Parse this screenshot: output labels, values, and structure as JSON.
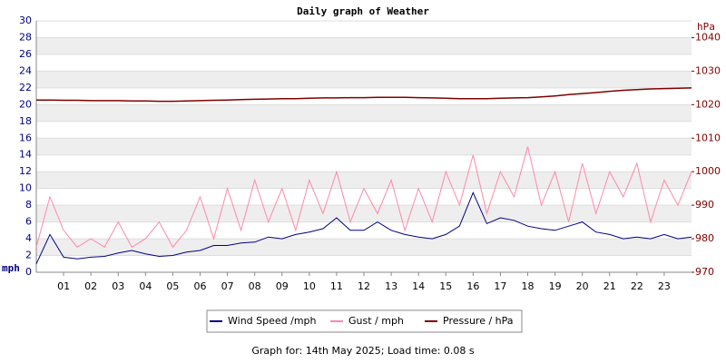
{
  "chart_data": {
    "type": "line",
    "title": "Daily graph of Weather",
    "ylabel": "mph",
    "y2label": "hPa",
    "footer": "Graph for: 14th May 2025; Load time: 0.08 s",
    "x": [
      0,
      0.5,
      1,
      1.5,
      2,
      2.5,
      3,
      3.5,
      4,
      4.5,
      5,
      5.5,
      6,
      6.5,
      7,
      7.5,
      8,
      8.5,
      9,
      9.5,
      10,
      10.5,
      11,
      11.5,
      12,
      12.5,
      13,
      13.5,
      14,
      14.5,
      15,
      15.5,
      16,
      16.5,
      17,
      17.5,
      18,
      18.5,
      19,
      19.5,
      20,
      20.5,
      21,
      21.5,
      22,
      22.5,
      23,
      23.5,
      24
    ],
    "series": [
      {
        "name": "Wind Speed /mph",
        "color": "#000080",
        "values": [
          1,
          4.5,
          1.8,
          1.6,
          1.8,
          1.9,
          2.3,
          2.6,
          2.2,
          1.9,
          2,
          2.4,
          2.6,
          3.2,
          3.2,
          3.5,
          3.6,
          4.2,
          4,
          4.5,
          4.8,
          5.2,
          6.5,
          5,
          5,
          6,
          5,
          4.5,
          4.2,
          4,
          4.5,
          5.5,
          9.5,
          5.8,
          6.5,
          6.2,
          5.5,
          5.2,
          5,
          5.5,
          6,
          4.8,
          4.5,
          4,
          4.2,
          4,
          4.5,
          4,
          4.2
        ]
      },
      {
        "name": "Gust / mph",
        "color": "#ff88aa",
        "values": [
          3,
          9,
          5,
          3,
          4,
          3,
          6,
          3,
          4,
          6,
          3,
          5,
          9,
          4,
          10,
          5,
          11,
          6,
          10,
          5,
          11,
          7,
          12,
          6,
          10,
          7,
          11,
          5,
          10,
          6,
          12,
          8,
          14,
          7,
          12,
          9,
          15,
          8,
          12,
          6,
          13,
          7,
          12,
          9,
          13,
          6,
          11,
          8,
          12
        ]
      },
      {
        "name": "Pressure / hPa",
        "color": "#800000",
        "axis": "y2",
        "values": [
          1021.4,
          1021.4,
          1021.3,
          1021.3,
          1021.2,
          1021.2,
          1021.2,
          1021.1,
          1021.1,
          1021.0,
          1021.0,
          1021.1,
          1021.2,
          1021.3,
          1021.4,
          1021.5,
          1021.6,
          1021.7,
          1021.8,
          1021.8,
          1021.9,
          1022.0,
          1022.0,
          1022.1,
          1022.1,
          1022.2,
          1022.2,
          1022.2,
          1022.1,
          1022.0,
          1021.9,
          1021.8,
          1021.8,
          1021.8,
          1021.9,
          1022.0,
          1022.1,
          1022.3,
          1022.6,
          1023.0,
          1023.3,
          1023.6,
          1024.0,
          1024.3,
          1024.5,
          1024.7,
          1024.8,
          1024.9,
          1025.0
        ]
      }
    ],
    "xlim": [
      0,
      24
    ],
    "xticks": [
      {
        "value": 1,
        "label": "01"
      },
      {
        "value": 2,
        "label": "02"
      },
      {
        "value": 3,
        "label": "03"
      },
      {
        "value": 4,
        "label": "04"
      },
      {
        "value": 5,
        "label": "05"
      },
      {
        "value": 6,
        "label": "06"
      },
      {
        "value": 7,
        "label": "07"
      },
      {
        "value": 8,
        "label": "08"
      },
      {
        "value": 9,
        "label": "09"
      },
      10,
      11,
      12,
      13,
      14,
      15,
      16,
      17,
      18,
      19,
      20,
      21,
      22,
      23
    ],
    "ylim": [
      0,
      30
    ],
    "yticks": [
      0,
      2,
      4,
      6,
      8,
      10,
      12,
      14,
      16,
      18,
      20,
      22,
      24,
      26,
      28,
      30
    ],
    "y2lim": [
      970,
      1045
    ],
    "y2ticks": [
      970,
      980,
      990,
      1000,
      1010,
      1020,
      1030,
      1040
    ],
    "grid": true,
    "legend_position": "bottom"
  }
}
